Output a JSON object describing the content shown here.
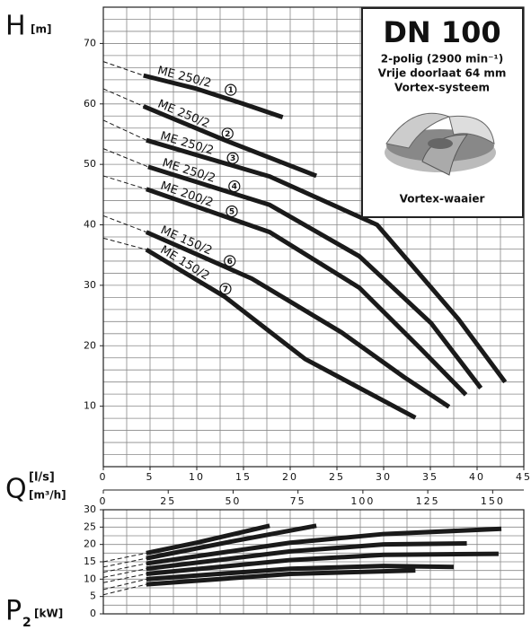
{
  "chart_data": [
    {
      "type": "line",
      "y_label": "H",
      "y_unit": "[m]",
      "x_label": "Q",
      "x_unit": "[l/s]",
      "x2_unit": "[m³/h]",
      "xlim": [
        0,
        45
      ],
      "xticks": [
        0,
        5,
        10,
        15,
        20,
        25,
        30,
        35,
        40,
        45
      ],
      "x2lim": [
        0,
        162
      ],
      "x2ticks": [
        0,
        25,
        50,
        75,
        100,
        125,
        150
      ],
      "ylim": [
        0,
        76
      ],
      "yticks": [
        10,
        20,
        30,
        40,
        50,
        60,
        70
      ],
      "grid": true,
      "minor_grid": {
        "x": 2.5,
        "y": 2
      },
      "dashed_until": 1,
      "color": "#1a1a1a",
      "series": [
        {
          "name": "ME 250/2",
          "label": "1",
          "x": [
            0,
            4.3,
            10,
            15,
            19.2
          ],
          "values": [
            67,
            64.7,
            62.5,
            60,
            57.8
          ]
        },
        {
          "name": "ME 250/2",
          "label": "2",
          "x": [
            0,
            4.3,
            13,
            22.8
          ],
          "values": [
            62.5,
            59.6,
            54,
            48.1
          ]
        },
        {
          "name": "ME 250/2",
          "label": "3",
          "x": [
            0,
            4.6,
            17.8,
            29.3,
            38,
            43
          ],
          "values": [
            57.3,
            54,
            48,
            40,
            24.4,
            14
          ]
        },
        {
          "name": "ME 250/2",
          "label": "4",
          "x": [
            0,
            4.8,
            17.8,
            27.4,
            35.1,
            40.4
          ],
          "values": [
            52.6,
            49.6,
            43.3,
            34.8,
            23.7,
            13
          ]
        },
        {
          "name": "ME 200/2",
          "label": "5",
          "x": [
            0,
            4.6,
            17.8,
            27.4,
            34.1,
            38.8
          ],
          "values": [
            48.1,
            45.9,
            38.8,
            29.6,
            19.3,
            11.9
          ]
        },
        {
          "name": "ME 150/2",
          "label": "6",
          "x": [
            0,
            4.6,
            15.9,
            25.5,
            32.2,
            37
          ],
          "values": [
            41.5,
            38.8,
            31.1,
            22.2,
            14.8,
            9.9
          ]
        },
        {
          "name": "ME 150/2",
          "label": "7",
          "x": [
            0,
            4.6,
            13,
            21.6,
            33.4
          ],
          "values": [
            37.8,
            35.9,
            28.1,
            17.8,
            8.1
          ]
        }
      ],
      "info_box": {
        "title": "DN 100",
        "lines": [
          "2-polig (2900 min⁻¹)",
          "Vrije doorlaat 64 mm",
          "Vortex-systeem"
        ],
        "caption": "Vortex-waaier"
      }
    },
    {
      "type": "line",
      "y_label": "P",
      "y_label_sub": "2",
      "y_unit": "[kW]",
      "xlim": [
        0,
        45
      ],
      "ylim": [
        0,
        30
      ],
      "yticks": [
        0,
        5,
        10,
        15,
        20,
        25,
        30
      ],
      "grid": true,
      "minor_grid": {
        "x": 2.5,
        "y": 2.5
      },
      "dashed_until": 1,
      "color": "#1a1a1a",
      "series": [
        {
          "x": [
            0,
            4.6,
            10,
            17.8
          ],
          "values": [
            15,
            17.5,
            20.5,
            25.4
          ]
        },
        {
          "x": [
            0,
            4.6,
            14,
            22.8
          ],
          "values": [
            13.5,
            16,
            21,
            25.4
          ]
        },
        {
          "x": [
            0,
            4.6,
            20,
            30,
            42.6
          ],
          "values": [
            12,
            14.5,
            20.5,
            23,
            24.5
          ]
        },
        {
          "x": [
            0,
            4.6,
            20,
            30,
            38.9
          ],
          "values": [
            10.5,
            13,
            18,
            20,
            20.3
          ]
        },
        {
          "x": [
            0,
            4.6,
            20,
            30,
            42.3
          ],
          "values": [
            9,
            11.5,
            15.5,
            17,
            17.3
          ]
        },
        {
          "x": [
            0,
            4.6,
            20,
            30,
            37.5
          ],
          "values": [
            7,
            10,
            13,
            13.8,
            13.5
          ]
        },
        {
          "x": [
            0,
            4.6,
            20,
            33.4
          ],
          "values": [
            5.5,
            8.5,
            11.5,
            12.5
          ]
        }
      ]
    }
  ]
}
